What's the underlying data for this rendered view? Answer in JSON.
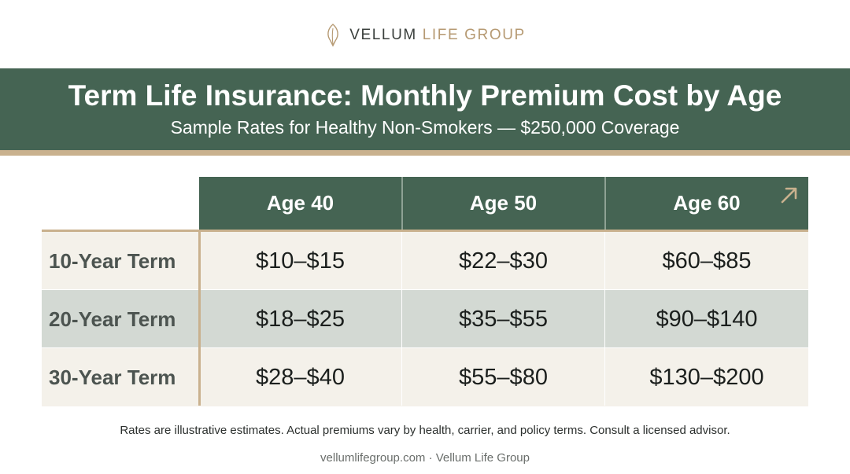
{
  "brand": {
    "name_primary": "VELLUM",
    "name_secondary": "LIFE GROUP",
    "icon": "leaf-icon"
  },
  "header": {
    "title": "Term Life Insurance: Monthly Premium Cost by Age",
    "subtitle": "Sample Rates for Healthy Non-Smokers — $250,000 Coverage"
  },
  "table": {
    "columns": [
      "Age 40",
      "Age 50",
      "Age 60"
    ],
    "rows": [
      {
        "label": "10-Year Term",
        "values": [
          "$10–$15",
          "$22–$30",
          "$60–$85"
        ]
      },
      {
        "label": "20-Year Term",
        "values": [
          "$18–$25",
          "$35–$55",
          "$90–$140"
        ]
      },
      {
        "label": "30-Year Term",
        "values": [
          "$28–$40",
          "$55–$80",
          "$130–$200"
        ]
      }
    ],
    "corner_icon": "arrow-up-right-icon"
  },
  "footnote": "Rates are illustrative estimates. Actual premiums vary by health, carrier, and policy terms. Consult a licensed advisor.",
  "footer": "vellumlifegroup.com · Vellum Life Group",
  "colors": {
    "band_green": "#456453",
    "accent_gold": "#c9b18e",
    "row_light": "#f4f1ea",
    "row_dark": "#d3d9d3"
  }
}
